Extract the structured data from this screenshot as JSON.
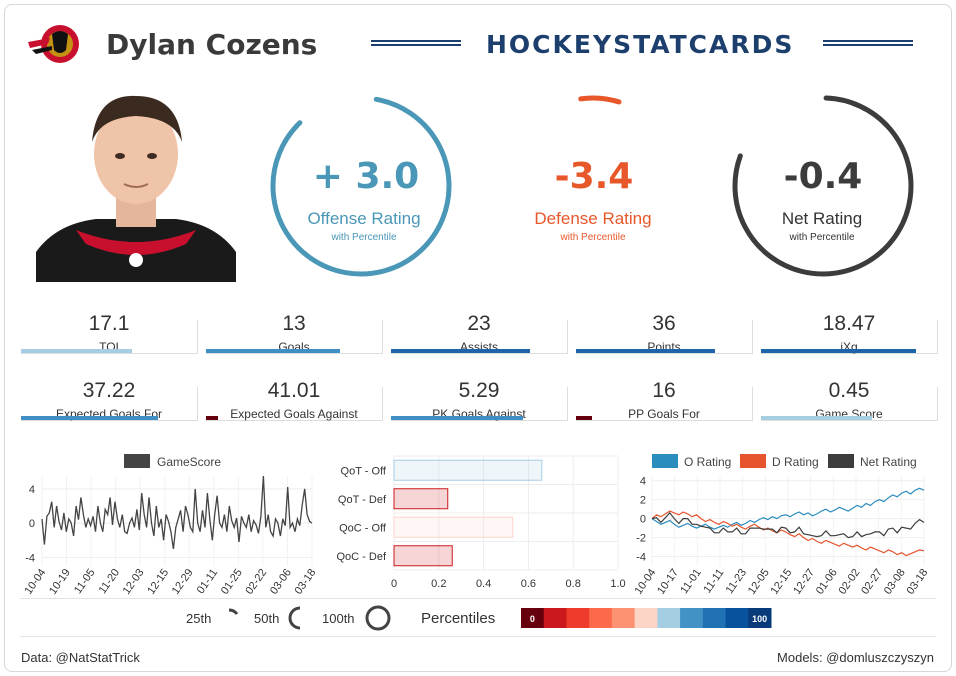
{
  "header": {
    "player_name": "Dylan Cozens",
    "site_title": "HOCKEYSTATCARDS"
  },
  "ratings": {
    "offense": {
      "value": "+ 3.0",
      "label": "Offense Rating",
      "sub": "with Percentile",
      "percentile": 0.85,
      "color": "#4a97b8"
    },
    "defense": {
      "value": "-3.4",
      "label": "Defense Rating",
      "sub": "with Percentile",
      "percentile": 0.07,
      "color": "#e8572a"
    },
    "net": {
      "value": "-0.4",
      "label": "Net Rating",
      "sub": "with Percentile",
      "percentile": 0.8,
      "color": "#3c3c3c"
    }
  },
  "stats_row1": [
    {
      "value": "17.1",
      "label": "TOI",
      "pct": 0.63,
      "color": "#a6cee3"
    },
    {
      "value": "13",
      "label": "Goals",
      "pct": 0.76,
      "color": "#3f8fc4"
    },
    {
      "value": "23",
      "label": "Assists",
      "pct": 0.79,
      "color": "#1f64a8"
    },
    {
      "value": "36",
      "label": "Points",
      "pct": 0.79,
      "color": "#1f64a8"
    },
    {
      "value": "18.47",
      "label": "iXg",
      "pct": 0.88,
      "color": "#1f64a8"
    }
  ],
  "stats_row2": [
    {
      "value": "37.22",
      "label": "Expected Goals For",
      "pct": 0.78,
      "color": "#3f8fc4"
    },
    {
      "value": "41.01",
      "label": "Expected Goals Against",
      "pct": 0.07,
      "color": "#67000d"
    },
    {
      "value": "5.29",
      "label": "PK Goals Against",
      "pct": 0.75,
      "color": "#3f8fc4"
    },
    {
      "value": "16",
      "label": "PP Goals For",
      "pct": 0.09,
      "color": "#67000d"
    },
    {
      "value": "0.45",
      "label": "Game Score",
      "pct": 0.63,
      "color": "#a6cee3"
    }
  ],
  "chart_data": [
    {
      "type": "line",
      "legend": [
        "GameScore"
      ],
      "color": "#444444",
      "ylim": [
        -5,
        5.5
      ],
      "yticks": [
        -4,
        0,
        4
      ],
      "xticks": [
        "10-04",
        "10-19",
        "11-05",
        "11-20",
        "12-03",
        "12-15",
        "12-29",
        "01-11",
        "01-25",
        "02-22",
        "03-06",
        "03-18"
      ],
      "values": [
        0.5,
        -2.5,
        0.8,
        1.2,
        2.5,
        -0.5,
        2.0,
        0.2,
        -0.8,
        1.2,
        -1.0,
        0.5,
        0.0,
        -1.5,
        2.0,
        0.4,
        3.0,
        1.0,
        -0.5,
        0.5,
        -0.3,
        0.8,
        -1.0,
        2.0,
        0.0,
        -1.0,
        1.6,
        1.0,
        3.0,
        -0.2,
        2.5,
        0.5,
        -0.5,
        1.0,
        -1.0,
        -1.2,
        0.0,
        0.6,
        -0.5,
        1.6,
        -0.8,
        3.5,
        1.0,
        -0.5,
        3.0,
        0.0,
        -1.5,
        2.0,
        -0.5,
        0.5,
        -2.0,
        1.0,
        0.2,
        -1.0,
        -3.0,
        -0.5,
        0.5,
        1.5,
        -1.0,
        2.0,
        1.0,
        -0.5,
        -1.0,
        4.0,
        0.0,
        -1.0,
        1.5,
        -0.5,
        3.5,
        0.5,
        -2.0,
        1.0,
        3.2,
        0.0,
        -0.5,
        1.0,
        -1.0,
        2.0,
        0.3,
        -0.5,
        0.6,
        -2.2,
        0.8,
        0.0,
        -0.5,
        1.0,
        -1.0,
        0.3,
        -0.2,
        -1.2,
        0.8,
        5.5,
        -0.5,
        1.0,
        -1.0,
        -1.5,
        0.5,
        0.0,
        -1.5,
        0.5,
        -0.3,
        4.2,
        -0.5,
        0.0,
        -1.0,
        0.5,
        -0.3,
        2.2,
        4.0,
        1.0,
        0.2,
        0.0
      ]
    },
    {
      "type": "bar",
      "orientation": "horizontal",
      "categories": [
        "QoT - Off",
        "QoT - Def",
        "QoC - Off",
        "QoC - Def"
      ],
      "values": [
        0.66,
        0.24,
        0.53,
        0.26
      ],
      "colors": [
        "#a6cee3",
        "#cb181d",
        "#fcd5c9",
        "#cb181d"
      ],
      "xlim": [
        0,
        1.0
      ],
      "xticks": [
        "0",
        "0.2",
        "0.4",
        "0.6",
        "0.8",
        "1.0"
      ]
    },
    {
      "type": "line",
      "series": [
        {
          "name": "O Rating",
          "color": "#2b8cbe",
          "values": [
            0,
            -0.3,
            -0.6,
            -0.4,
            -0.2,
            -0.6,
            -0.9,
            -0.7,
            -0.5,
            -0.8,
            -1.0,
            -0.8,
            -0.6,
            -0.9,
            -1.1,
            -0.9,
            -0.7,
            -0.9,
            -0.6,
            -0.4,
            -0.7,
            -0.5,
            -0.2,
            -0.4,
            -0.1,
            0.1,
            -0.1,
            0.2,
            0.0,
            0.3,
            0.4,
            0.2,
            0.5,
            0.7,
            0.4,
            0.6,
            0.3,
            0.5,
            0.8,
            1.0,
            0.7,
            0.9,
            1.2,
            1.0,
            0.8,
            1.1,
            1.4,
            1.2,
            1.6,
            1.4,
            1.8,
            2.0,
            1.8,
            2.2,
            2.5,
            2.3,
            2.7,
            2.9,
            2.6,
            3.0,
            3.2,
            3.0
          ]
        },
        {
          "name": "D Rating",
          "color": "#e6552e",
          "values": [
            0,
            0.4,
            0.2,
            0.5,
            0.8,
            0.6,
            0.4,
            0.7,
            0.5,
            0.2,
            0.4,
            0.0,
            -0.3,
            -0.1,
            -0.4,
            -0.6,
            -0.3,
            -0.5,
            -0.8,
            -0.6,
            -0.9,
            -1.1,
            -0.8,
            -0.6,
            -0.9,
            -1.2,
            -1.0,
            -1.3,
            -1.5,
            -1.2,
            -1.4,
            -1.7,
            -1.9,
            -1.6,
            -2.0,
            -2.3,
            -2.1,
            -2.4,
            -2.6,
            -2.3,
            -2.5,
            -2.7,
            -2.9,
            -2.6,
            -2.8,
            -3.0,
            -2.8,
            -3.1,
            -3.3,
            -3.0,
            -3.2,
            -3.4,
            -3.6,
            -3.3,
            -3.5,
            -3.8,
            -3.6,
            -3.9,
            -3.7,
            -3.5,
            -3.3,
            -3.4
          ]
        },
        {
          "name": "Net Rating",
          "color": "#3c3c3c",
          "values": [
            0,
            0.1,
            -0.4,
            0.1,
            0.6,
            0.0,
            -0.5,
            0.0,
            0.0,
            -0.6,
            -0.6,
            -0.8,
            -0.9,
            -1.0,
            -1.5,
            -1.5,
            -1.0,
            -1.4,
            -1.4,
            -1.0,
            -1.6,
            -1.6,
            -1.0,
            -1.0,
            -1.0,
            -1.1,
            -1.1,
            -1.1,
            -1.5,
            -0.9,
            -1.0,
            -1.5,
            -1.4,
            -0.9,
            -1.6,
            -1.7,
            -1.8,
            -1.9,
            -1.8,
            -1.3,
            -1.8,
            -1.8,
            -1.7,
            -1.6,
            -2.0,
            -1.9,
            -1.4,
            -1.9,
            -1.7,
            -1.6,
            -1.4,
            -1.4,
            -1.8,
            -1.1,
            -1.0,
            -1.5,
            -0.9,
            -1.0,
            -1.1,
            -0.5,
            -0.1,
            -0.4
          ]
        }
      ],
      "ylim": [
        -5,
        4.5
      ],
      "yticks": [
        -4,
        -2,
        0,
        2,
        4
      ],
      "xticks": [
        "10-04",
        "10-17",
        "11-01",
        "11-11",
        "11-23",
        "12-05",
        "12-15",
        "12-27",
        "01-06",
        "02-02",
        "02-27",
        "03-08",
        "03-18"
      ]
    }
  ],
  "percentile_legend": {
    "labels": [
      "25th",
      "50th",
      "100th"
    ],
    "title": "Percentiles",
    "scale_min": "0",
    "scale_max": "100",
    "colors": [
      "#67000d",
      "#cb181d",
      "#ef3b2c",
      "#fb6a4a",
      "#fc9272",
      "#fdd5c6",
      "#a6cee3",
      "#4292c6",
      "#2171b5",
      "#08519c",
      "#083b7a"
    ]
  },
  "footer": {
    "left": "Data: @NatStatTrick",
    "right": "Models: @domluszczyszyn"
  }
}
